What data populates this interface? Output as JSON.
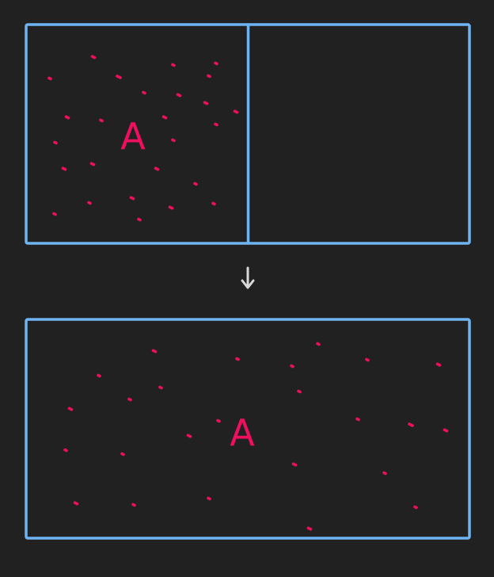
{
  "colors": {
    "background": "#222121",
    "box_stroke": "#6fb4f2",
    "particle": "#ee0f5e",
    "arrow": "#d8d8d8"
  },
  "top_panel": {
    "region_label": "A"
  },
  "bottom_panel": {
    "region_label": "A"
  },
  "arrow_icon": "arrow-down-icon"
}
